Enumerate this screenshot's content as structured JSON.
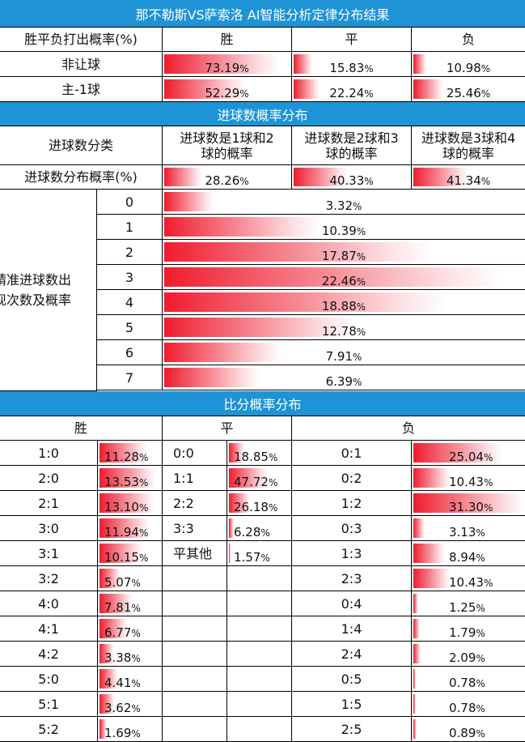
{
  "title": "那不勒斯VS萨索洛  AI智能分析定律分布结果",
  "outcome": {
    "header": {
      "label": "胜平负打出概率(%)",
      "win": "胜",
      "draw": "平",
      "lose": "负"
    },
    "rows": [
      {
        "label": "非让球",
        "win": "73.19",
        "draw": "15.83",
        "lose": "10.98"
      },
      {
        "label": "主-1球",
        "win": "52.29",
        "draw": "22.24",
        "lose": "25.46"
      }
    ]
  },
  "goals_section": {
    "title": "进球数概率分布",
    "category_label": "进球数分类",
    "categories": [
      {
        "line1": "进球数是1球和2",
        "line2": "球的概率"
      },
      {
        "line1": "进球数是2球和3",
        "line2": "球的概率"
      },
      {
        "line1": "进球数是3球和4",
        "line2": "球的概率"
      }
    ],
    "dist_label": "进球数分布概率(%)",
    "dist_values": [
      "28.26",
      "40.33",
      "41.34"
    ],
    "exact_label_line1": "精准进球数出",
    "exact_label_line2": "现次数及概率",
    "exact": [
      {
        "goals": "0",
        "value": "3.32"
      },
      {
        "goals": "1",
        "value": "10.39"
      },
      {
        "goals": "2",
        "value": "17.87"
      },
      {
        "goals": "3",
        "value": "22.46"
      },
      {
        "goals": "4",
        "value": "18.88"
      },
      {
        "goals": "5",
        "value": "12.78"
      },
      {
        "goals": "6",
        "value": "7.91"
      },
      {
        "goals": "7",
        "value": "6.39"
      }
    ]
  },
  "score_section": {
    "title": "比分概率分布",
    "win_header": "胜",
    "draw_header": "平",
    "lose_header": "负",
    "win": [
      {
        "score": "1:0",
        "value": "11.28"
      },
      {
        "score": "2:0",
        "value": "13.53"
      },
      {
        "score": "2:1",
        "value": "13.10"
      },
      {
        "score": "3:0",
        "value": "11.94"
      },
      {
        "score": "3:1",
        "value": "10.15"
      },
      {
        "score": "3:2",
        "value": "5.07"
      },
      {
        "score": "4:0",
        "value": "7.81"
      },
      {
        "score": "4:1",
        "value": "6.77"
      },
      {
        "score": "4:2",
        "value": "3.38"
      },
      {
        "score": "5:0",
        "value": "4.41"
      },
      {
        "score": "5:1",
        "value": "3.62"
      },
      {
        "score": "5:2",
        "value": "1.69"
      }
    ],
    "draw": [
      {
        "score": "0:0",
        "value": "18.85"
      },
      {
        "score": "1:1",
        "value": "47.72"
      },
      {
        "score": "2:2",
        "value": "26.18"
      },
      {
        "score": "3:3",
        "value": "6.28"
      },
      {
        "score": "平其他",
        "value": "1.57"
      }
    ],
    "lose": [
      {
        "score": "0:1",
        "value": "25.04"
      },
      {
        "score": "0:2",
        "value": "10.43"
      },
      {
        "score": "1:2",
        "value": "31.30"
      },
      {
        "score": "0:3",
        "value": "3.13"
      },
      {
        "score": "1:3",
        "value": "8.94"
      },
      {
        "score": "2:3",
        "value": "10.43"
      },
      {
        "score": "0:4",
        "value": "1.25"
      },
      {
        "score": "1:4",
        "value": "1.79"
      },
      {
        "score": "2:4",
        "value": "2.09"
      },
      {
        "score": "0:5",
        "value": "0.78"
      },
      {
        "score": "1:5",
        "value": "0.78"
      },
      {
        "score": "2:5",
        "value": "0.89"
      }
    ]
  },
  "percent_sign": "%",
  "colors": {
    "header_band": "#1e93d6",
    "bar_strong": "#ef1c2e",
    "bar_light": "#fde3e6"
  }
}
